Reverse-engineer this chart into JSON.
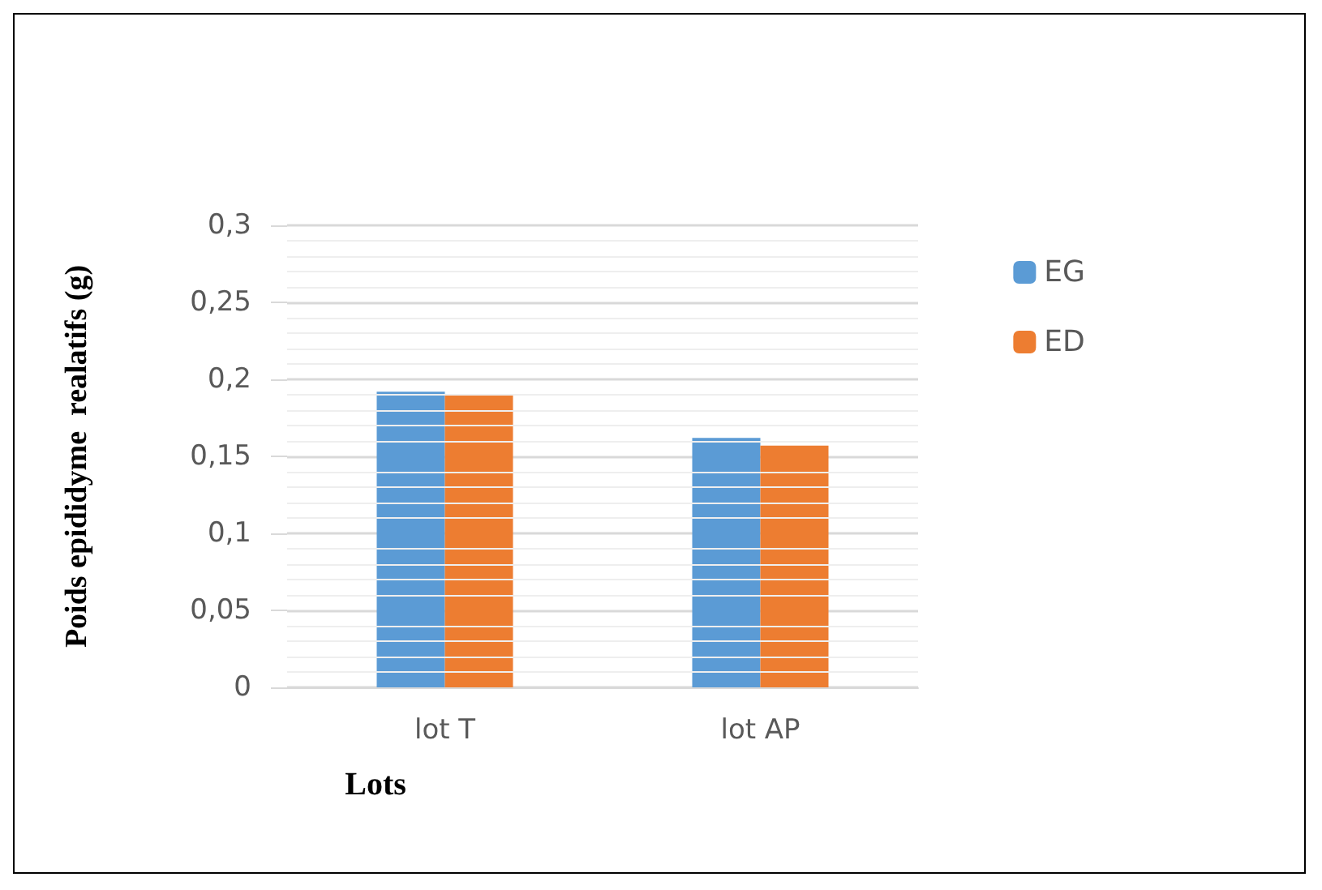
{
  "chart_data": {
    "type": "bar",
    "xlabel": "Lots",
    "ylabel": "Poids epididyme  realatifs (g)",
    "categories": [
      "lot T",
      "lot AP"
    ],
    "series": [
      {
        "name": "EG",
        "color": "#5b9bd5",
        "values": [
          0.192,
          0.162
        ]
      },
      {
        "name": "ED",
        "color": "#ed7d31",
        "values": [
          0.19,
          0.157
        ]
      }
    ],
    "ylim": [
      0,
      0.3
    ],
    "yticks": [
      {
        "value": 0,
        "label": "0"
      },
      {
        "value": 0.05,
        "label": "0,05"
      },
      {
        "value": 0.1,
        "label": "0,1"
      },
      {
        "value": 0.15,
        "label": "0,15"
      },
      {
        "value": 0.2,
        "label": "0,2"
      },
      {
        "value": 0.25,
        "label": "0,25"
      },
      {
        "value": 0.3,
        "label": "0,3"
      }
    ],
    "grid": "y",
    "legend": "right"
  }
}
